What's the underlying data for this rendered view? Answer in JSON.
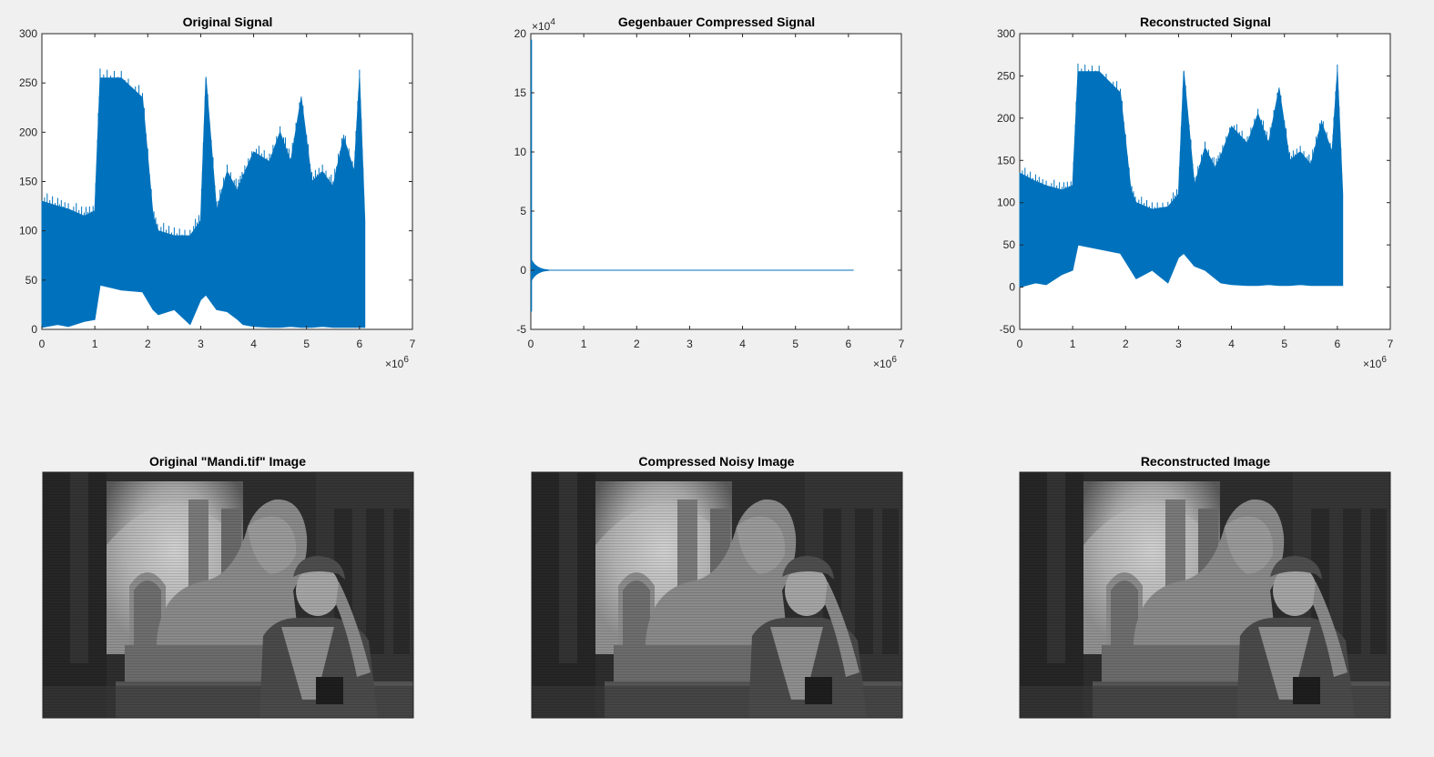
{
  "figure": {
    "background": "#f0f0f0",
    "line_color": "#0072bd"
  },
  "chart_data": [
    {
      "type": "area",
      "title": "Original Signal",
      "xlim": [
        0,
        7
      ],
      "xticks": [
        "0",
        "1",
        "2",
        "3",
        "4",
        "5",
        "6",
        "7"
      ],
      "x_exponent": "6",
      "ylim": [
        0,
        300
      ],
      "yticks": [
        "0",
        "50",
        "100",
        "150",
        "200",
        "250",
        "300"
      ],
      "envelope": {
        "x": [
          0,
          0.3,
          0.5,
          0.8,
          1.0,
          1.1,
          1.5,
          1.9,
          2.1,
          2.2,
          2.5,
          2.8,
          3.0,
          3.1,
          3.3,
          3.5,
          3.7,
          3.8,
          4.0,
          4.3,
          4.5,
          4.7,
          4.9,
          5.1,
          5.3,
          5.5,
          5.7,
          5.9,
          6.0,
          6.1
        ],
        "upper": [
          130,
          125,
          122,
          115,
          120,
          255,
          255,
          235,
          115,
          100,
          95,
          95,
          110,
          255,
          120,
          160,
          140,
          155,
          180,
          170,
          200,
          170,
          235,
          150,
          160,
          145,
          195,
          160,
          255,
          110
        ],
        "lower": [
          2,
          5,
          3,
          8,
          10,
          45,
          40,
          38,
          20,
          15,
          20,
          5,
          30,
          35,
          20,
          18,
          10,
          5,
          3,
          2,
          2,
          3,
          2,
          2,
          3,
          2,
          2,
          2,
          2,
          2
        ]
      }
    },
    {
      "type": "line",
      "title": "Gegenbauer Compressed Signal",
      "xlim": [
        0,
        7
      ],
      "xticks": [
        "0",
        "1",
        "2",
        "3",
        "4",
        "5",
        "6",
        "7"
      ],
      "x_exponent": "6",
      "ylim": [
        -5,
        20
      ],
      "yticks": [
        "-5",
        "0",
        "5",
        "10",
        "15",
        "20"
      ],
      "y_exponent": "4",
      "spike": {
        "x": 0.01,
        "min": -3.5,
        "max": 19.5
      },
      "decay_end_x": 0.35,
      "flat_end_x": 6.1,
      "flat_value": 0
    },
    {
      "type": "area",
      "title": "Reconstructed Signal",
      "xlim": [
        0,
        7
      ],
      "xticks": [
        "0",
        "1",
        "2",
        "3",
        "4",
        "5",
        "6",
        "7"
      ],
      "x_exponent": "6",
      "ylim": [
        -50,
        300
      ],
      "yticks": [
        "-50",
        "0",
        "50",
        "100",
        "150",
        "200",
        "250",
        "300"
      ],
      "envelope": {
        "x": [
          0,
          0.3,
          0.5,
          0.8,
          1.0,
          1.1,
          1.5,
          1.9,
          2.1,
          2.2,
          2.5,
          2.8,
          3.0,
          3.1,
          3.3,
          3.5,
          3.7,
          3.8,
          4.0,
          4.3,
          4.5,
          4.7,
          4.9,
          5.1,
          5.3,
          5.5,
          5.7,
          5.9,
          6.0,
          6.1
        ],
        "upper": [
          135,
          125,
          120,
          115,
          120,
          255,
          255,
          230,
          115,
          100,
          92,
          95,
          110,
          255,
          120,
          165,
          140,
          155,
          190,
          170,
          205,
          170,
          235,
          150,
          160,
          145,
          195,
          160,
          255,
          110
        ],
        "lower": [
          0,
          5,
          3,
          15,
          20,
          50,
          45,
          40,
          20,
          10,
          20,
          5,
          35,
          40,
          25,
          20,
          10,
          5,
          3,
          2,
          2,
          3,
          2,
          2,
          3,
          2,
          2,
          2,
          2,
          2
        ]
      }
    }
  ],
  "images": [
    {
      "title": "Original \"Mandi.tif\" Image"
    },
    {
      "title": "Compressed Noisy Image"
    },
    {
      "title": "Reconstructed Image"
    }
  ]
}
